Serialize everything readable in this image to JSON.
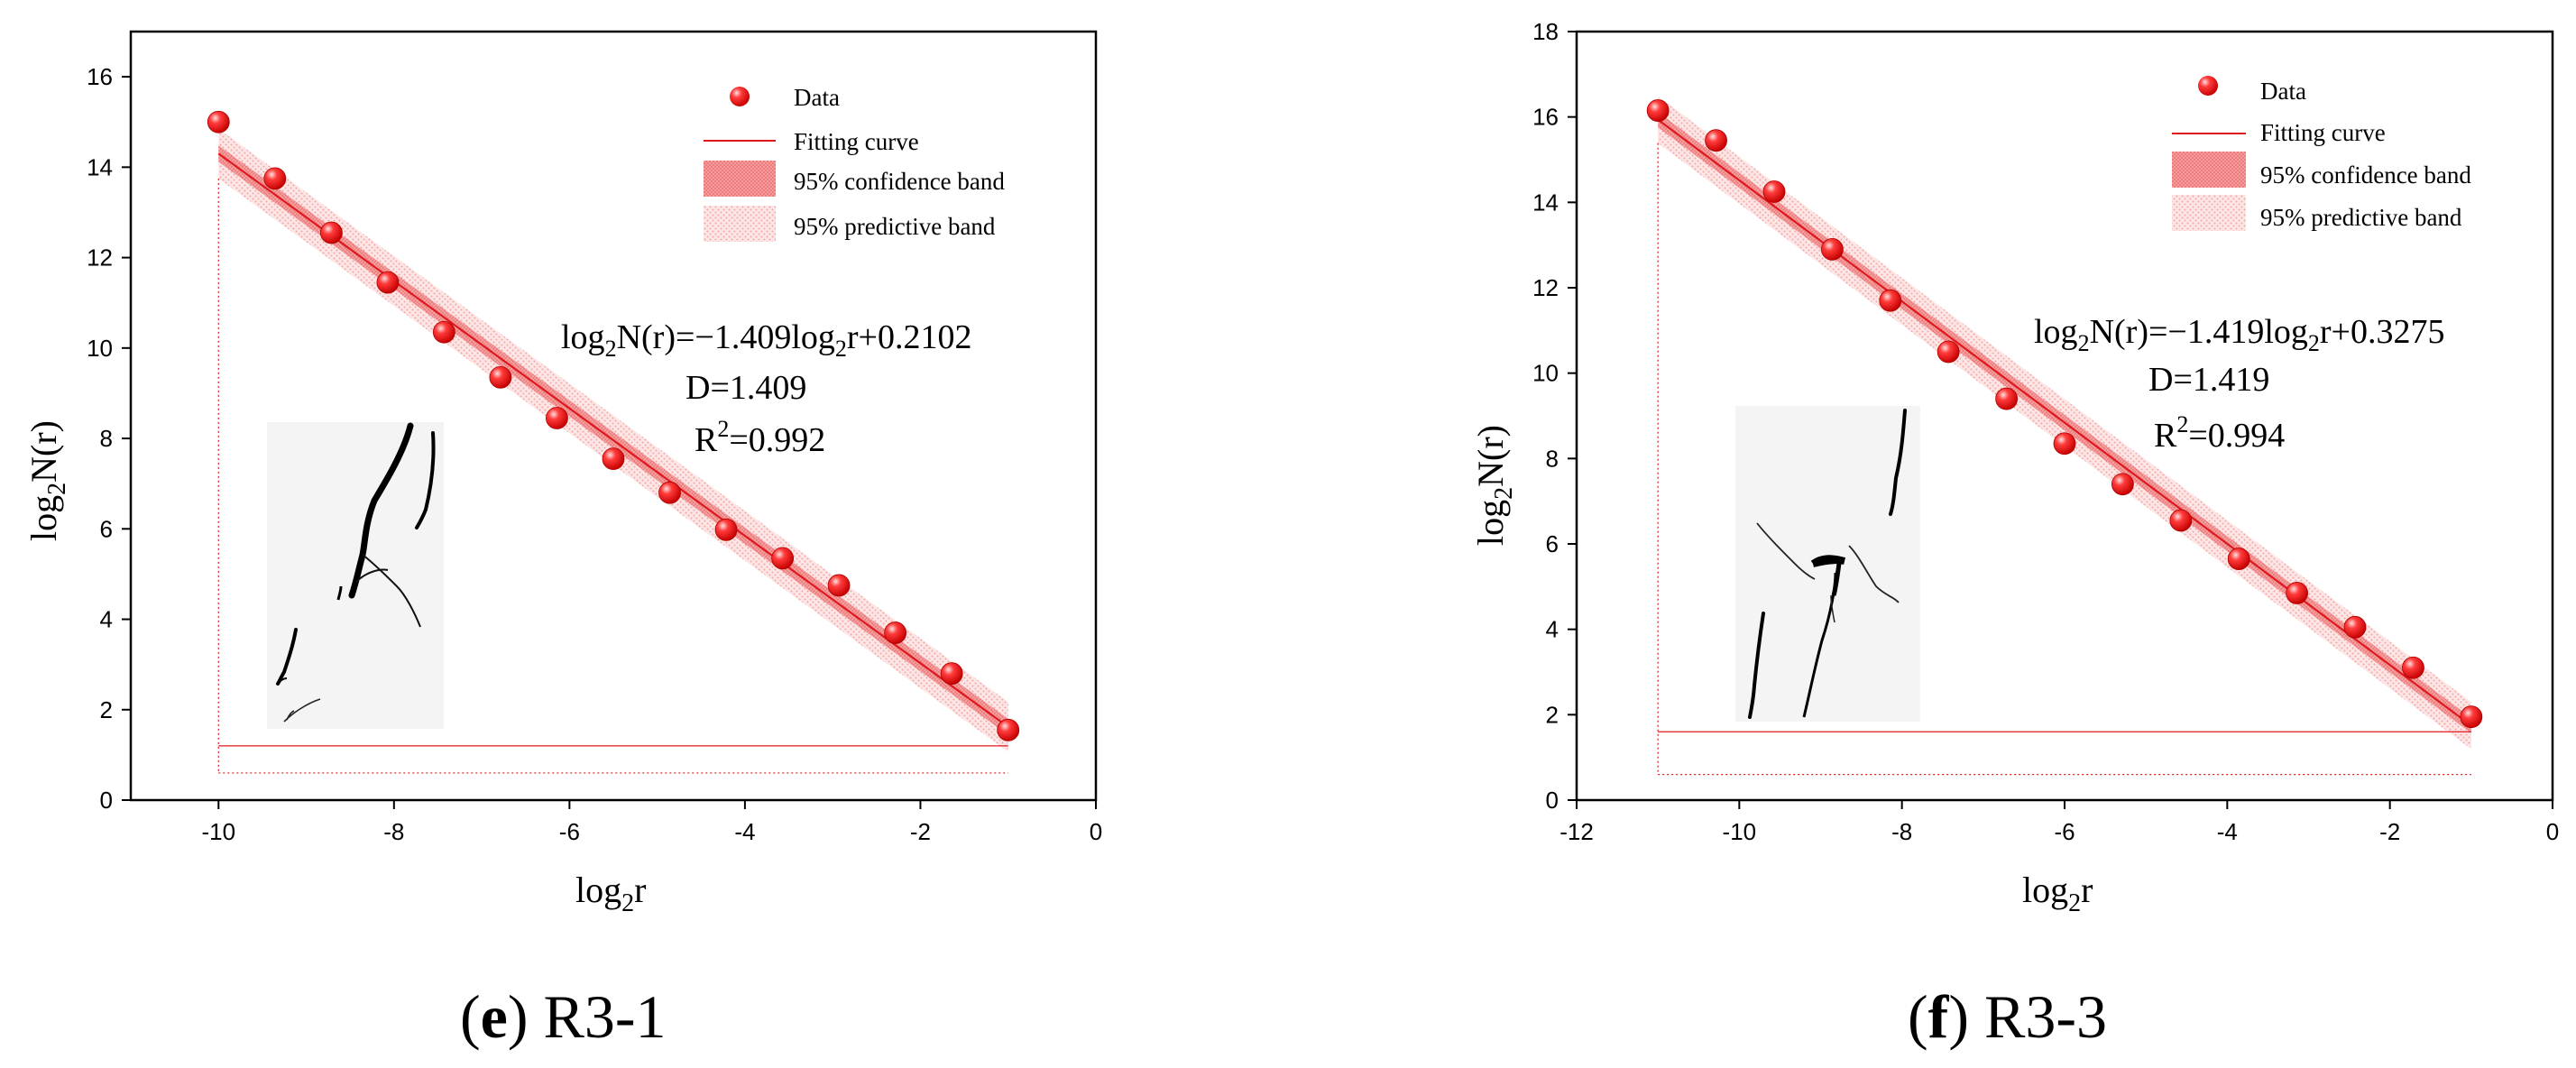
{
  "chart_data": [
    {
      "type": "scatter",
      "id": "e",
      "caption_letter": "e",
      "caption_label": "R3-1",
      "xlabel": "log",
      "xlabel_sub": "2",
      "xlabel_tail": "r",
      "ylabel": "log",
      "ylabel_sub": "2",
      "ylabel_tail": "N(r)",
      "xlim": [
        -11,
        0
      ],
      "ylim": [
        0,
        17
      ],
      "xticks": [
        -10,
        -8,
        -6,
        -4,
        -2,
        0
      ],
      "yticks": [
        0,
        2,
        4,
        6,
        8,
        10,
        12,
        14,
        16
      ],
      "x": [
        -10,
        -9.357,
        -8.714,
        -8.071,
        -7.429,
        -6.786,
        -6.143,
        -5.5,
        -4.857,
        -4.214,
        -3.571,
        -2.929,
        -2.286,
        -1.643,
        -1
      ],
      "y": [
        15.0,
        13.75,
        12.55,
        11.45,
        10.35,
        9.35,
        8.45,
        7.55,
        6.8,
        5.98,
        5.35,
        4.75,
        3.7,
        2.8,
        1.55
      ],
      "fit": {
        "slope": -1.409,
        "intercept": 0.2102,
        "x_range": [
          -10,
          -1
        ]
      },
      "conf_halfwidth": 0.18,
      "pred_halfwidth": 0.55,
      "annotation": {
        "eq_left": "log",
        "eq_sub1": "2",
        "eq_mid": "N(r)=−1.409log",
        "eq_sub2": "2",
        "eq_tail": "r+0.2102",
        "d_line": "D=1.409",
        "r_prefix": "R",
        "r_sup": "2",
        "r_tail": "=0.992"
      },
      "legend": {
        "placement": "top-right",
        "items": [
          "Data",
          "Fitting curve",
          "95% confidence band",
          "95% predictive band"
        ]
      },
      "inset": "crack-image"
    },
    {
      "type": "scatter",
      "id": "f",
      "caption_letter": "f",
      "caption_label": "R3-3",
      "xlabel": "log",
      "xlabel_sub": "2",
      "xlabel_tail": "r",
      "ylabel": "log",
      "ylabel_sub": "2",
      "ylabel_tail": "N(r)",
      "xlim": [
        -12,
        0
      ],
      "ylim": [
        0,
        18
      ],
      "xticks": [
        -12,
        -10,
        -8,
        -6,
        -4,
        -2,
        0
      ],
      "yticks": [
        0,
        2,
        4,
        6,
        8,
        10,
        12,
        14,
        16,
        18
      ],
      "x": [
        -11,
        -10.286,
        -9.571,
        -8.857,
        -8.143,
        -7.429,
        -6.714,
        -6.0,
        -5.286,
        -4.571,
        -3.857,
        -3.143,
        -2.429,
        -1.714,
        -1
      ],
      "y": [
        16.15,
        15.45,
        14.25,
        12.9,
        11.7,
        10.5,
        9.4,
        8.35,
        7.4,
        6.55,
        5.65,
        4.85,
        4.05,
        3.1,
        1.95
      ],
      "fit": {
        "slope": -1.419,
        "intercept": 0.3275,
        "x_range": [
          -11,
          -1
        ]
      },
      "conf_halfwidth": 0.18,
      "pred_halfwidth": 0.55,
      "annotation": {
        "eq_left": "log",
        "eq_sub1": "2",
        "eq_mid": "N(r)=−1.419log",
        "eq_sub2": "2",
        "eq_tail": "r+0.3275",
        "d_line": "D=1.419",
        "r_prefix": "R",
        "r_sup": "2",
        "r_tail": "=0.994"
      },
      "legend": {
        "placement": "top-right",
        "items": [
          "Data",
          "Fitting curve",
          "95% confidence band",
          "95% predictive band"
        ]
      },
      "inset": "crack-image"
    }
  ],
  "colors": {
    "marker": "#ff1a1a",
    "marker_highlight": "#ffd0d0",
    "fit_line": "#e0181e",
    "conf_band": "#f27a7a",
    "pred_band": "#f8c0c0",
    "frame": "#000000"
  }
}
